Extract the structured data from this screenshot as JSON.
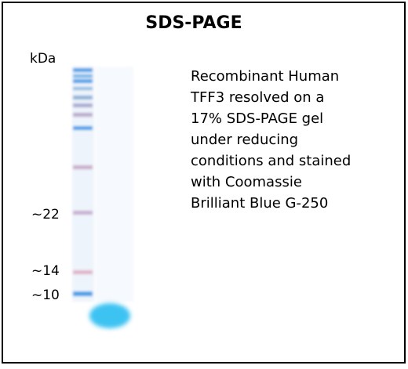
{
  "title": "SDS-PAGE",
  "unit_label": "kDa",
  "marker_labels": [
    "~22",
    "~14",
    "~10"
  ],
  "description": {
    "lines": [
      "Recombinant Human",
      "TFF3 resolved on a",
      "17% SDS-PAGE gel",
      "under reducing",
      "conditions and stained",
      "with Coomassie",
      "Brilliant Blue G-250"
    ]
  }
}
